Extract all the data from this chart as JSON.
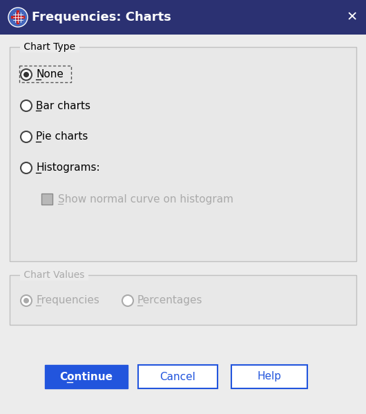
{
  "title": "Frequencies: Charts",
  "title_bar_color": "#2b3172",
  "title_text_color": "#ffffff",
  "title_fontsize": 13,
  "bg_color": "#ececec",
  "dialog_bg": "#ececec",
  "groupbox_fill": "#e8e8e8",
  "chart_type_label": "Chart Type",
  "chart_values_label": "Chart Values",
  "radio_options": [
    "None",
    "Bar charts",
    "Pie charts",
    "Histograms:"
  ],
  "underline_offsets": [
    0,
    0,
    0,
    0
  ],
  "selected_radio": 0,
  "checkbox_label": "Show normal curve on histogram",
  "value_options": [
    "Frequencies",
    "Percentages"
  ],
  "selected_value": 0,
  "buttons": [
    "Continue",
    "Cancel",
    "Help"
  ],
  "continue_bg": "#2255dd",
  "continue_text_color": "#ffffff",
  "cancel_help_text_color": "#2255dd",
  "cancel_help_bg": "#ffffff",
  "button_border_color": "#2255dd",
  "groupbox_border_color": "#c0c0c0",
  "radio_outer_color": "#444444",
  "radio_inner_color": "#333333",
  "text_color_active": "#000000",
  "text_color_disabled": "#aaaaaa",
  "checkbox_fill": "#b8b8b8",
  "checkbox_border": "#888888",
  "title_bar_height": 50,
  "figw": 5.3,
  "figh": 5.99,
  "dpi": 100
}
